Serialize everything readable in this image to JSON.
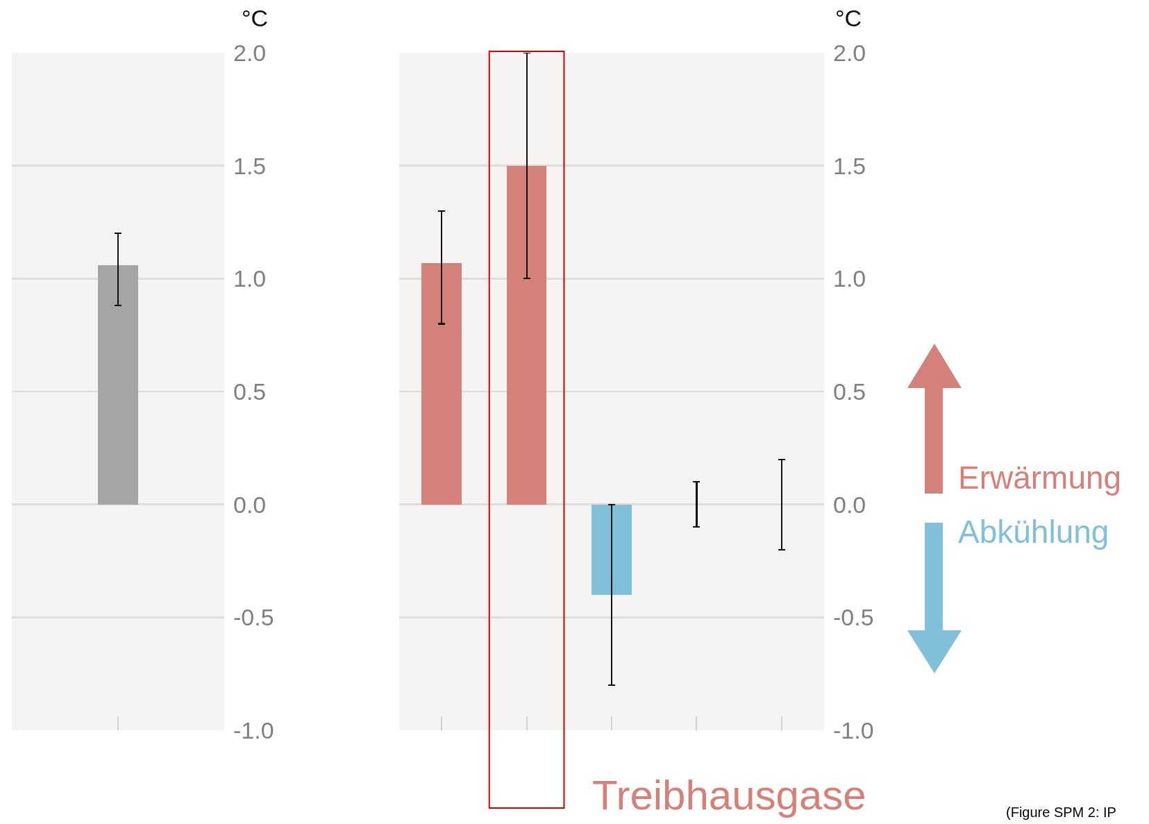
{
  "chart_data": [
    {
      "type": "bar",
      "ylabel": "°C",
      "categories": [
        null
      ],
      "values": [
        1.06
      ],
      "colors": [
        "#a5a5a5"
      ],
      "errors": [
        [
          0.88,
          1.2
        ]
      ],
      "ylim": [
        -1.0,
        2.0
      ],
      "yticks": [
        {
          "value": -1,
          "label": "-1.0"
        },
        {
          "value": -0.5,
          "label": "-0.5"
        },
        {
          "value": 0,
          "label": "0.0"
        },
        {
          "value": 0.5,
          "label": "0.5"
        },
        {
          "value": 1,
          "label": "1.0"
        },
        {
          "value": 1.5,
          "label": "1.5"
        },
        {
          "value": 2,
          "label": "2.0"
        }
      ],
      "grid": "y",
      "tick_labels": "y"
    },
    {
      "type": "bar",
      "ylabel": "°C",
      "categories": [
        null,
        null,
        null,
        null,
        null
      ],
      "values": [
        1.07,
        1.5,
        -0.4,
        0,
        0
      ],
      "colors": [
        "#d4817a",
        "#d4817a",
        "#82bfd8",
        "#a5a5a5",
        "#a5a5a5"
      ],
      "errors": [
        [
          0.8,
          1.3
        ],
        [
          1.0,
          2.0
        ],
        [
          -0.8,
          0.0
        ],
        [
          -0.1,
          0.1
        ],
        [
          -0.2,
          0.2
        ]
      ],
      "ylim": [
        -1.0,
        2.0
      ],
      "yticks": [
        {
          "value": -1,
          "label": "-1.0"
        },
        {
          "value": -0.5,
          "label": "-0.5"
        },
        {
          "value": 0,
          "label": "0.0"
        },
        {
          "value": 0.5,
          "label": "0.5"
        },
        {
          "value": 1,
          "label": "1.0"
        },
        {
          "value": 1.5,
          "label": "1.5"
        },
        {
          "value": 2,
          "label": "2.0"
        }
      ],
      "grid": "y",
      "tick_labels": "y",
      "annotations": [
        "Treibhausgase",
        "Erwärmung",
        "Abkühlung",
        "(Figure SPM 2: IP"
      ]
    }
  ]
}
